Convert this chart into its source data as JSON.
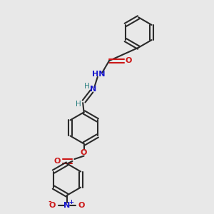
{
  "bg_color": "#e8e8e8",
  "bond_color": "#2a2a2a",
  "n_color": "#1818cc",
  "o_color": "#cc1818",
  "teal_color": "#2a8080",
  "figsize": [
    3.0,
    3.0
  ],
  "dpi": 100,
  "xlim": [
    0,
    10
  ],
  "ylim": [
    0,
    10
  ]
}
